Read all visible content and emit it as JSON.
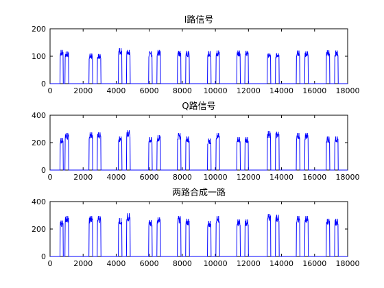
{
  "chart_data": [
    {
      "type": "line",
      "title": "I路信号",
      "xlim": [
        0,
        18000
      ],
      "ylim": [
        0,
        200
      ],
      "xticks": [
        0,
        2000,
        4000,
        6000,
        8000,
        10000,
        12000,
        14000,
        16000,
        18000
      ],
      "yticks": [
        0,
        100,
        200
      ],
      "grid": false,
      "series": [
        {
          "color": "#0000ff",
          "pulses": [
            {
              "start": 600,
              "end": 800,
              "peak": 123
            },
            {
              "start": 900,
              "end": 1130,
              "peak": 117
            },
            {
              "start": 2350,
              "end": 2580,
              "peak": 110
            },
            {
              "start": 2850,
              "end": 3080,
              "peak": 108
            },
            {
              "start": 4130,
              "end": 4350,
              "peak": 130
            },
            {
              "start": 4620,
              "end": 4850,
              "peak": 123
            },
            {
              "start": 5960,
              "end": 6180,
              "peak": 118
            },
            {
              "start": 6460,
              "end": 6680,
              "peak": 123
            },
            {
              "start": 7700,
              "end": 7920,
              "peak": 120
            },
            {
              "start": 8200,
              "end": 8430,
              "peak": 120
            },
            {
              "start": 9520,
              "end": 9740,
              "peak": 119
            },
            {
              "start": 10030,
              "end": 10250,
              "peak": 121
            },
            {
              "start": 11290,
              "end": 11510,
              "peak": 121
            },
            {
              "start": 11780,
              "end": 12000,
              "peak": 120
            },
            {
              "start": 13130,
              "end": 13350,
              "peak": 110
            },
            {
              "start": 13630,
              "end": 13860,
              "peak": 111
            },
            {
              "start": 14890,
              "end": 15110,
              "peak": 121
            },
            {
              "start": 15400,
              "end": 15620,
              "peak": 118
            },
            {
              "start": 16700,
              "end": 16920,
              "peak": 122
            },
            {
              "start": 17210,
              "end": 17430,
              "peak": 121
            }
          ]
        }
      ]
    },
    {
      "type": "line",
      "title": "Q路信号",
      "xlim": [
        0,
        18000
      ],
      "ylim": [
        0,
        400
      ],
      "xticks": [
        0,
        2000,
        4000,
        6000,
        8000,
        10000,
        12000,
        14000,
        16000,
        18000
      ],
      "yticks": [
        0,
        200,
        400
      ],
      "grid": false,
      "series": [
        {
          "color": "#0000ff",
          "pulses": [
            {
              "start": 600,
              "end": 800,
              "peak": 235
            },
            {
              "start": 900,
              "end": 1130,
              "peak": 270
            },
            {
              "start": 2350,
              "end": 2580,
              "peak": 275
            },
            {
              "start": 2850,
              "end": 3080,
              "peak": 275
            },
            {
              "start": 4130,
              "end": 4350,
              "peak": 245
            },
            {
              "start": 4620,
              "end": 4850,
              "peak": 290
            },
            {
              "start": 5960,
              "end": 6180,
              "peak": 240
            },
            {
              "start": 6460,
              "end": 6680,
              "peak": 255
            },
            {
              "start": 7700,
              "end": 7920,
              "peak": 270
            },
            {
              "start": 8200,
              "end": 8430,
              "peak": 245
            },
            {
              "start": 9520,
              "end": 9740,
              "peak": 230
            },
            {
              "start": 10030,
              "end": 10250,
              "peak": 270
            },
            {
              "start": 11290,
              "end": 11510,
              "peak": 240
            },
            {
              "start": 11780,
              "end": 12000,
              "peak": 240
            },
            {
              "start": 13130,
              "end": 13350,
              "peak": 285
            },
            {
              "start": 13630,
              "end": 13860,
              "peak": 280
            },
            {
              "start": 14890,
              "end": 15110,
              "peak": 270
            },
            {
              "start": 15400,
              "end": 15620,
              "peak": 270
            },
            {
              "start": 16700,
              "end": 16920,
              "peak": 245
            },
            {
              "start": 17210,
              "end": 17430,
              "peak": 245
            }
          ]
        }
      ]
    },
    {
      "type": "line",
      "title": "两路合成一路",
      "xlim": [
        0,
        18000
      ],
      "ylim": [
        0,
        400
      ],
      "xticks": [
        0,
        2000,
        4000,
        6000,
        8000,
        10000,
        12000,
        14000,
        16000,
        18000
      ],
      "yticks": [
        0,
        200,
        400
      ],
      "grid": false,
      "series": [
        {
          "color": "#0000ff",
          "pulses": [
            {
              "start": 600,
              "end": 800,
              "peak": 262
            },
            {
              "start": 900,
              "end": 1130,
              "peak": 295
            },
            {
              "start": 2350,
              "end": 2580,
              "peak": 295
            },
            {
              "start": 2850,
              "end": 3080,
              "peak": 295
            },
            {
              "start": 4130,
              "end": 4350,
              "peak": 280
            },
            {
              "start": 4620,
              "end": 4850,
              "peak": 315
            },
            {
              "start": 5960,
              "end": 6180,
              "peak": 265
            },
            {
              "start": 6460,
              "end": 6680,
              "peak": 285
            },
            {
              "start": 7700,
              "end": 7920,
              "peak": 295
            },
            {
              "start": 8200,
              "end": 8430,
              "peak": 275
            },
            {
              "start": 9520,
              "end": 9740,
              "peak": 260
            },
            {
              "start": 10030,
              "end": 10250,
              "peak": 295
            },
            {
              "start": 11290,
              "end": 11510,
              "peak": 270
            },
            {
              "start": 11780,
              "end": 12000,
              "peak": 270
            },
            {
              "start": 13130,
              "end": 13350,
              "peak": 310
            },
            {
              "start": 13630,
              "end": 13860,
              "peak": 305
            },
            {
              "start": 14890,
              "end": 15110,
              "peak": 295
            },
            {
              "start": 15400,
              "end": 15620,
              "peak": 295
            },
            {
              "start": 16700,
              "end": 16920,
              "peak": 275
            },
            {
              "start": 17210,
              "end": 17430,
              "peak": 275
            }
          ]
        }
      ]
    }
  ]
}
